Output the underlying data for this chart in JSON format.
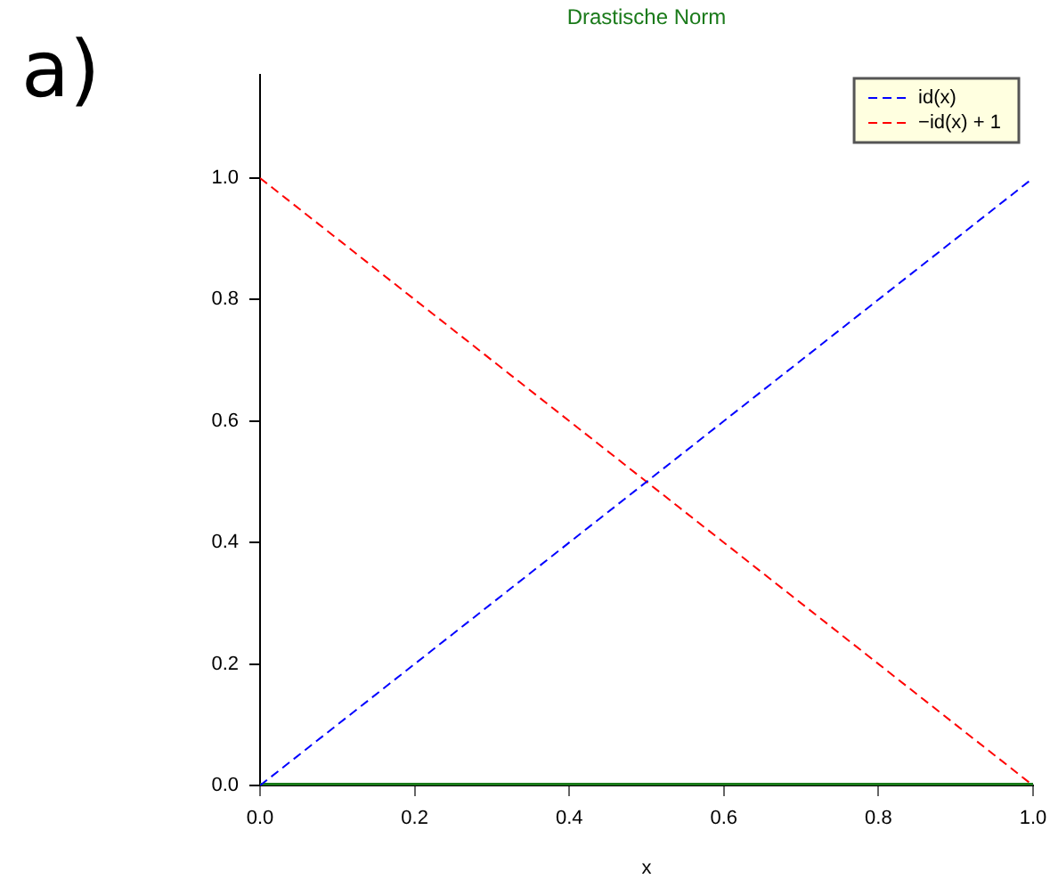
{
  "chart_data": {
    "type": "line",
    "title": "Drastische Norm",
    "xlabel": "x",
    "annotations": [
      "a)"
    ],
    "x": [
      0,
      1
    ],
    "xlim": [
      0,
      1
    ],
    "xticks": [
      {
        "value": 0,
        "label": "0.0"
      },
      {
        "value": 0.2,
        "label": "0.2"
      },
      {
        "value": 0.4,
        "label": "0.4"
      },
      {
        "value": 0.6,
        "label": "0.6"
      },
      {
        "value": 0.8,
        "label": "0.8"
      },
      {
        "value": 1,
        "label": "1.0"
      }
    ],
    "ylim": [
      0,
      1.17
    ],
    "yticks": [
      {
        "value": 0,
        "label": "0.0"
      },
      {
        "value": 0.2,
        "label": "0.2"
      },
      {
        "value": 0.4,
        "label": "0.4"
      },
      {
        "value": 0.6,
        "label": "0.6"
      },
      {
        "value": 0.8,
        "label": "0.8"
      },
      {
        "value": 1,
        "label": "1.0"
      }
    ],
    "grid": false,
    "legend": "top right",
    "marker": "none",
    "series": [
      {
        "name": "id(x)",
        "color": "#0000ff",
        "values": [
          0,
          1
        ],
        "line_style": "dashed"
      },
      {
        "name": "−id(x) + 1",
        "color": "#ff0000",
        "values": [
          1,
          0
        ],
        "line_style": "dashed"
      },
      {
        "color": "#1a7a1a",
        "values": [
          0,
          0
        ],
        "line_style": "solid"
      }
    ]
  }
}
